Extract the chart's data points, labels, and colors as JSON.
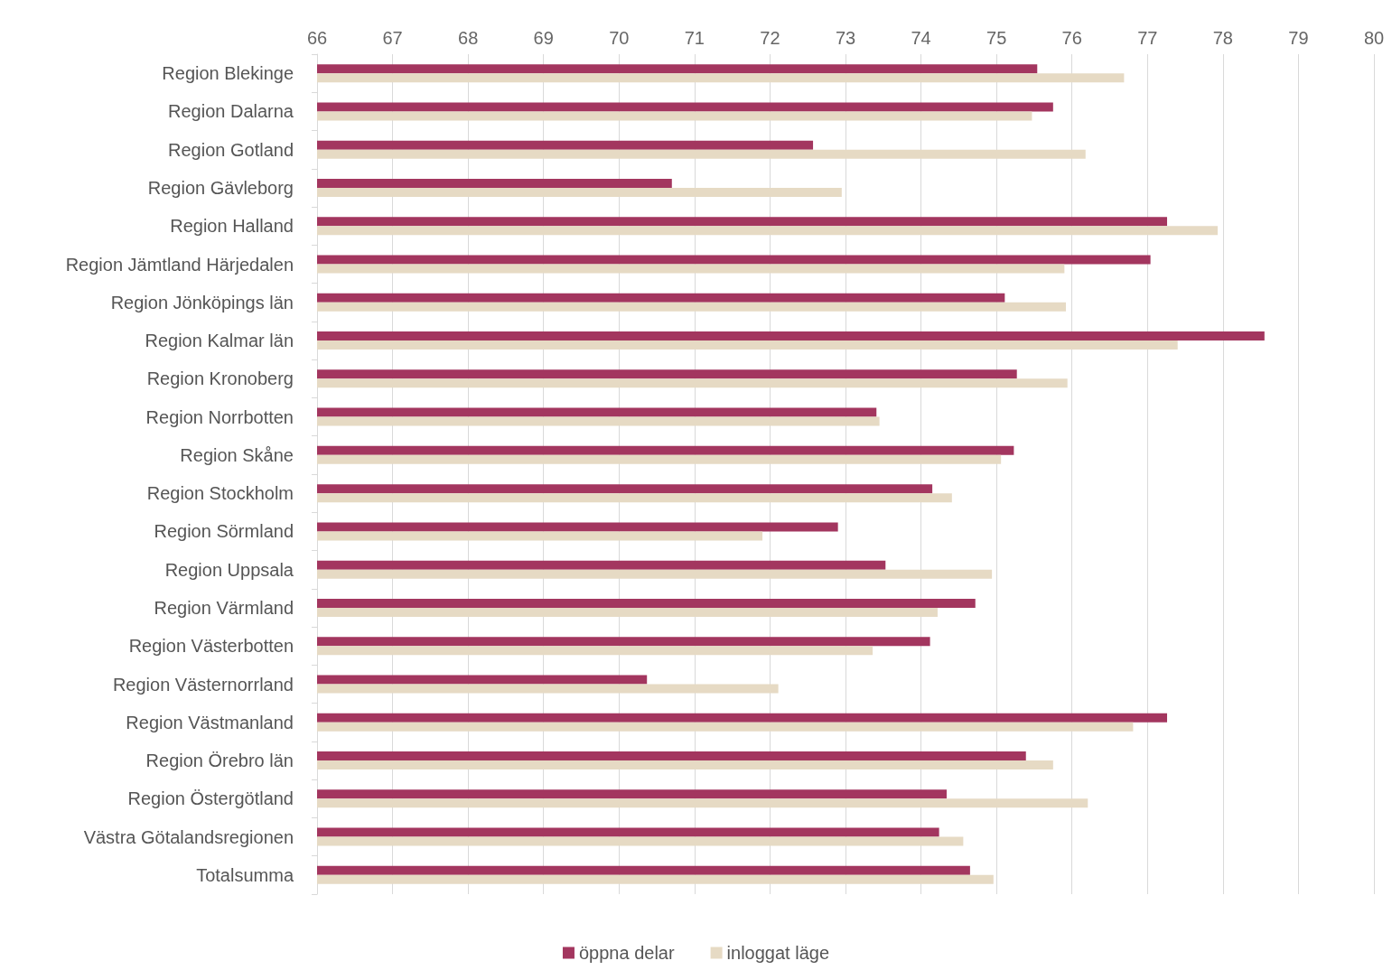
{
  "chart_data": {
    "type": "bar",
    "orientation": "horizontal",
    "categories": [
      "Region Blekinge",
      "Region Dalarna",
      "Region Gotland",
      "Region Gävleborg",
      "Region Halland",
      "Region Jämtland Härjedalen",
      "Region Jönköpings län",
      "Region Kalmar län",
      "Region Kronoberg",
      "Region Norrbotten",
      "Region Skåne",
      "Region Stockholm",
      "Region Sörmland",
      "Region Uppsala",
      "Region Värmland",
      "Region Västerbotten",
      "Region Västernorrland",
      "Region Västmanland",
      "Region Örebro län",
      "Region Östergötland",
      "Västra Götalandsregionen",
      "Totalsumma"
    ],
    "series": [
      {
        "name": "öppna delar",
        "color": "#a3365f",
        "values": [
          75.54,
          75.75,
          72.57,
          70.7,
          77.26,
          77.04,
          75.11,
          78.55,
          75.27,
          73.41,
          75.23,
          74.15,
          72.9,
          73.53,
          74.72,
          74.12,
          70.37,
          77.26,
          75.39,
          74.34,
          74.24,
          74.65
        ]
      },
      {
        "name": "inloggat läge",
        "color": "#e6dac4",
        "values": [
          76.69,
          75.47,
          76.18,
          72.95,
          77.93,
          75.9,
          75.92,
          77.4,
          75.94,
          73.45,
          75.06,
          74.41,
          71.9,
          74.94,
          74.22,
          73.36,
          72.11,
          76.81,
          75.75,
          76.21,
          74.56,
          74.96
        ]
      }
    ],
    "xlim": [
      66,
      80
    ],
    "xticks": [
      66,
      67,
      68,
      69,
      70,
      71,
      72,
      73,
      74,
      75,
      76,
      77,
      78,
      79,
      80
    ],
    "grid": "x",
    "legend": "bottom"
  }
}
